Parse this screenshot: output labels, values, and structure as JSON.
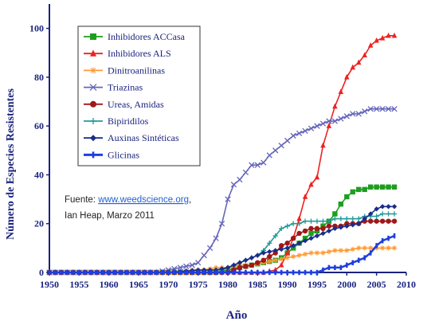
{
  "chart_data": {
    "type": "line",
    "xlabel": "Año",
    "ylabel": "Número de Especies Resistentes",
    "xlim": [
      1950,
      2010
    ],
    "ylim": [
      0,
      110
    ],
    "x_ticks": [
      "1950",
      "1955",
      "1960",
      "1965",
      "1970",
      "1975",
      "1980",
      "1985",
      "1990",
      "1995",
      "2000",
      "2005",
      "2010"
    ],
    "y_ticks": [
      "0",
      "20",
      "40",
      "60",
      "80",
      "100"
    ],
    "grid": false,
    "legend_position": "top-left",
    "source": {
      "prefix": "Fuente: ",
      "link": "www.weedscience.org",
      "suffix": ",",
      "line2": "Ian Heap, Marzo 2011"
    },
    "series": [
      {
        "name": "Inhibidores ACCasa",
        "color": "#1e9e1e",
        "marker": "square",
        "points": [
          [
            1950,
            0
          ],
          [
            1978,
            0
          ],
          [
            1980,
            1
          ],
          [
            1982,
            2
          ],
          [
            1984,
            3
          ],
          [
            1986,
            4
          ],
          [
            1988,
            5
          ],
          [
            1989,
            6
          ],
          [
            1990,
            8
          ],
          [
            1991,
            10
          ],
          [
            1992,
            12
          ],
          [
            1993,
            14
          ],
          [
            1994,
            16
          ],
          [
            1995,
            17
          ],
          [
            1996,
            19
          ],
          [
            1997,
            21
          ],
          [
            1998,
            24
          ],
          [
            1999,
            28
          ],
          [
            2000,
            31
          ],
          [
            2001,
            33
          ],
          [
            2002,
            34
          ],
          [
            2003,
            34
          ],
          [
            2004,
            35
          ],
          [
            2005,
            35
          ],
          [
            2006,
            35
          ],
          [
            2007,
            35
          ],
          [
            2008,
            35
          ]
        ]
      },
      {
        "name": "Inhibidores ALS",
        "color": "#ee2222",
        "marker": "triangle",
        "points": [
          [
            1950,
            0
          ],
          [
            1986,
            0
          ],
          [
            1988,
            1
          ],
          [
            1989,
            3
          ],
          [
            1990,
            8
          ],
          [
            1991,
            14
          ],
          [
            1992,
            22
          ],
          [
            1993,
            31
          ],
          [
            1994,
            36
          ],
          [
            1995,
            39
          ],
          [
            1996,
            52
          ],
          [
            1997,
            60
          ],
          [
            1998,
            68
          ],
          [
            1999,
            74
          ],
          [
            2000,
            80
          ],
          [
            2001,
            84
          ],
          [
            2002,
            86
          ],
          [
            2003,
            89
          ],
          [
            2004,
            93
          ],
          [
            2005,
            95
          ],
          [
            2006,
            96
          ],
          [
            2007,
            97
          ],
          [
            2008,
            97
          ]
        ]
      },
      {
        "name": "Dinitroanilinas",
        "color": "#ff9933",
        "marker": "cross",
        "points": [
          [
            1950,
            0
          ],
          [
            1972,
            0
          ],
          [
            1974,
            1
          ],
          [
            1976,
            1
          ],
          [
            1978,
            2
          ],
          [
            1980,
            2
          ],
          [
            1982,
            3
          ],
          [
            1984,
            3
          ],
          [
            1986,
            4
          ],
          [
            1988,
            5
          ],
          [
            1990,
            6
          ],
          [
            1992,
            7
          ],
          [
            1994,
            8
          ],
          [
            1996,
            8
          ],
          [
            1998,
            9
          ],
          [
            2000,
            9
          ],
          [
            2002,
            10
          ],
          [
            2004,
            10
          ],
          [
            2006,
            10
          ],
          [
            2008,
            10
          ]
        ]
      },
      {
        "name": "Triazinas",
        "color": "#6666bb",
        "marker": "x",
        "points": [
          [
            1950,
            0
          ],
          [
            1968,
            0
          ],
          [
            1970,
            1
          ],
          [
            1972,
            2
          ],
          [
            1974,
            3
          ],
          [
            1975,
            4
          ],
          [
            1976,
            7
          ],
          [
            1977,
            10
          ],
          [
            1978,
            14
          ],
          [
            1979,
            20
          ],
          [
            1980,
            30
          ],
          [
            1981,
            36
          ],
          [
            1982,
            38
          ],
          [
            1983,
            41
          ],
          [
            1984,
            44
          ],
          [
            1985,
            44
          ],
          [
            1986,
            45
          ],
          [
            1987,
            48
          ],
          [
            1988,
            50
          ],
          [
            1989,
            52
          ],
          [
            1990,
            54
          ],
          [
            1991,
            56
          ],
          [
            1992,
            57
          ],
          [
            1993,
            58
          ],
          [
            1994,
            59
          ],
          [
            1995,
            60
          ],
          [
            1996,
            61
          ],
          [
            1997,
            62
          ],
          [
            1998,
            62
          ],
          [
            1999,
            63
          ],
          [
            2000,
            64
          ],
          [
            2001,
            65
          ],
          [
            2002,
            65
          ],
          [
            2003,
            66
          ],
          [
            2004,
            67
          ],
          [
            2005,
            67
          ],
          [
            2006,
            67
          ],
          [
            2007,
            67
          ],
          [
            2008,
            67
          ]
        ]
      },
      {
        "name": "Ureas, Amidas",
        "color": "#a01818",
        "marker": "circle",
        "points": [
          [
            1950,
            0
          ],
          [
            1980,
            0
          ],
          [
            1982,
            2
          ],
          [
            1984,
            3
          ],
          [
            1986,
            5
          ],
          [
            1988,
            8
          ],
          [
            1989,
            11
          ],
          [
            1990,
            12
          ],
          [
            1991,
            14
          ],
          [
            1992,
            16
          ],
          [
            1993,
            17
          ],
          [
            1994,
            18
          ],
          [
            1995,
            18
          ],
          [
            1996,
            18
          ],
          [
            1997,
            19
          ],
          [
            1998,
            19
          ],
          [
            1999,
            19
          ],
          [
            2000,
            20
          ],
          [
            2001,
            20
          ],
          [
            2002,
            20
          ],
          [
            2003,
            21
          ],
          [
            2004,
            21
          ],
          [
            2005,
            21
          ],
          [
            2006,
            21
          ],
          [
            2007,
            21
          ],
          [
            2008,
            21
          ]
        ]
      },
      {
        "name": "Bipiridilos",
        "color": "#229999",
        "marker": "plus",
        "points": [
          [
            1950,
            0
          ],
          [
            1978,
            0
          ],
          [
            1980,
            2
          ],
          [
            1982,
            4
          ],
          [
            1984,
            6
          ],
          [
            1985,
            7
          ],
          [
            1986,
            9
          ],
          [
            1987,
            12
          ],
          [
            1988,
            15
          ],
          [
            1989,
            18
          ],
          [
            1990,
            19
          ],
          [
            1991,
            20
          ],
          [
            1992,
            20
          ],
          [
            1993,
            21
          ],
          [
            1994,
            21
          ],
          [
            1995,
            21
          ],
          [
            1996,
            21
          ],
          [
            1997,
            21
          ],
          [
            1998,
            22
          ],
          [
            1999,
            22
          ],
          [
            2000,
            22
          ],
          [
            2001,
            22
          ],
          [
            2002,
            22
          ],
          [
            2003,
            23
          ],
          [
            2004,
            23
          ],
          [
            2005,
            23
          ],
          [
            2006,
            24
          ],
          [
            2007,
            24
          ],
          [
            2008,
            24
          ]
        ]
      },
      {
        "name": "Auxinas Sintéticas",
        "color": "#1a2d8a",
        "marker": "diamond",
        "points": [
          [
            1950,
            0
          ],
          [
            1970,
            0
          ],
          [
            1975,
            1
          ],
          [
            1978,
            1
          ],
          [
            1980,
            2
          ],
          [
            1982,
            4
          ],
          [
            1984,
            6
          ],
          [
            1985,
            7
          ],
          [
            1986,
            8
          ],
          [
            1988,
            9
          ],
          [
            1990,
            10
          ],
          [
            1992,
            12
          ],
          [
            1994,
            14
          ],
          [
            1996,
            16
          ],
          [
            1998,
            18
          ],
          [
            2000,
            19
          ],
          [
            2002,
            20
          ],
          [
            2003,
            22
          ],
          [
            2004,
            24
          ],
          [
            2005,
            26
          ],
          [
            2006,
            27
          ],
          [
            2007,
            27
          ],
          [
            2008,
            27
          ]
        ]
      },
      {
        "name": "Glicinas",
        "color": "#1f3fe0",
        "marker": "bar",
        "points": [
          [
            1950,
            0
          ],
          [
            1995,
            0
          ],
          [
            1996,
            1
          ],
          [
            1997,
            2
          ],
          [
            1998,
            2
          ],
          [
            1999,
            2
          ],
          [
            2000,
            3
          ],
          [
            2001,
            4
          ],
          [
            2002,
            5
          ],
          [
            2003,
            6
          ],
          [
            2004,
            8
          ],
          [
            2005,
            11
          ],
          [
            2006,
            13
          ],
          [
            2007,
            14
          ],
          [
            2008,
            15
          ]
        ]
      }
    ]
  }
}
